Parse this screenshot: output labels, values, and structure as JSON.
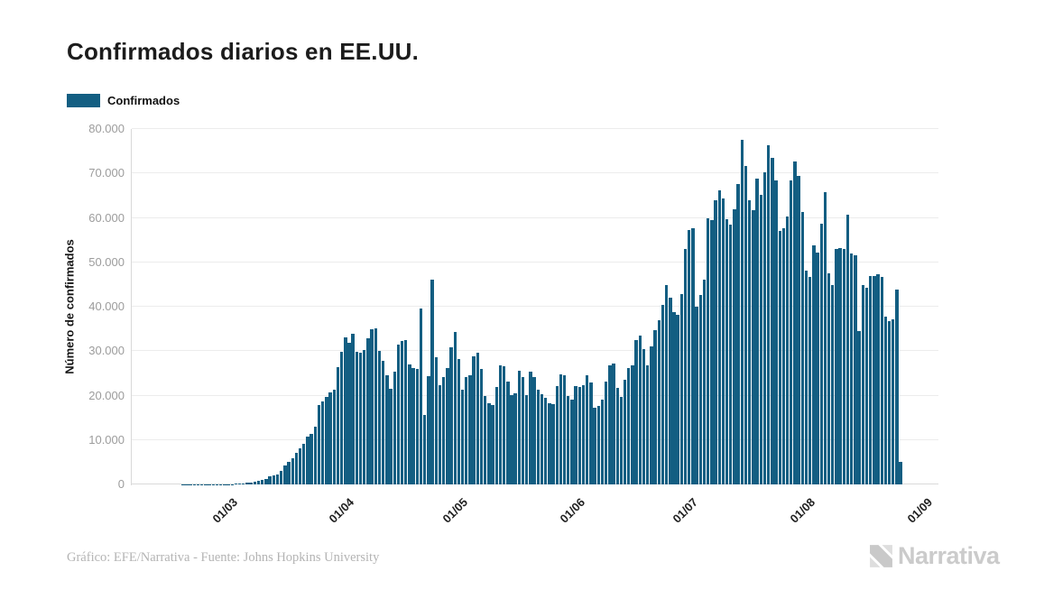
{
  "title": "Confirmados diarios en EE.UU.",
  "legend": {
    "label": "Confirmados",
    "swatch_color": "#135e82"
  },
  "y_axis": {
    "title": "Número de confirmados",
    "tick_labels": [
      "0",
      "10.000",
      "20.000",
      "30.000",
      "40.000",
      "50.000",
      "60.000",
      "70.000",
      "80.000"
    ],
    "tick_values": [
      0,
      10000,
      20000,
      30000,
      40000,
      50000,
      60000,
      70000,
      80000
    ]
  },
  "x_axis": {
    "tick_labels": [
      "01/03",
      "01/04",
      "01/05",
      "01/06",
      "01/07",
      "01/08",
      "01/09"
    ],
    "tick_day_indices": [
      17,
      48,
      78,
      109,
      139,
      170,
      201
    ]
  },
  "footer": {
    "credit": "Gráfico: EFE/Narrativa - Fuente: Johns Hopkins University"
  },
  "logo": {
    "text": "Narrativa"
  },
  "chart_data": {
    "type": "bar",
    "title": "Confirmados diarios en EE.UU.",
    "xlabel": "",
    "ylabel": "Número de confirmados",
    "ylim": [
      0,
      80000
    ],
    "grid": true,
    "legend_position": "top-left",
    "bar_color": "#135e82",
    "frequency": "daily",
    "start_date": "2020-02-13",
    "end_date": "2020-08-27",
    "x_tick_labels": [
      "01/03",
      "01/04",
      "01/05",
      "01/06",
      "01/07",
      "01/08",
      "01/09"
    ],
    "series": [
      {
        "name": "Confirmados",
        "values": [
          10,
          8,
          12,
          9,
          14,
          12,
          16,
          18,
          20,
          24,
          22,
          28,
          30,
          27,
          35,
          42,
          55,
          66,
          85,
          100,
          130,
          185,
          260,
          345,
          430,
          560,
          780,
          960,
          1250,
          1750,
          1950,
          2250,
          3100,
          4200,
          5100,
          5900,
          7200,
          8100,
          9200,
          10800,
          11300,
          13000,
          17800,
          18700,
          19700,
          20700,
          21300,
          26500,
          29900,
          33200,
          31900,
          33900,
          29900,
          29600,
          30200,
          32900,
          34900,
          35100,
          30100,
          27800,
          24600,
          21600,
          25300,
          31500,
          32200,
          32500,
          27100,
          26100,
          25900,
          39500,
          15700,
          24300,
          46000,
          28600,
          22300,
          24100,
          26200,
          30900,
          34300,
          28200,
          21400,
          24200,
          24500,
          28900,
          29600,
          25900,
          19900,
          18200,
          17900,
          21900,
          26900,
          26600,
          23200,
          20200,
          20500,
          25500,
          24200,
          20100,
          25400,
          24200,
          21400,
          20400,
          19400,
          18300,
          18100,
          22200,
          24800,
          24500,
          20000,
          19100,
          22200,
          22000,
          22400,
          24600,
          23000,
          17300,
          17700,
          19000,
          23100,
          26800,
          27200,
          21700,
          19700,
          23500,
          26200,
          26800,
          32500,
          33500,
          30500,
          26800,
          31000,
          34700,
          36900,
          40500,
          44800,
          42100,
          38700,
          38200,
          42800,
          52900,
          57300,
          57700,
          40000,
          42700,
          46000,
          60000,
          59500,
          63900,
          66100,
          64400,
          59700,
          58500,
          62000,
          67600,
          77500,
          71600,
          64000,
          61700,
          68800,
          65100,
          70300,
          76300,
          73600,
          68500,
          57000,
          57700,
          60400,
          68500,
          72600,
          69500,
          61400,
          48200,
          46800,
          53900,
          52200,
          58700,
          65800,
          47500,
          44800,
          52900,
          53300,
          52900,
          60700,
          51900,
          51600,
          34600,
          44900,
          44300,
          47000,
          46900,
          47400,
          46700,
          37700,
          36700,
          37100,
          43800,
          5100
        ]
      }
    ]
  }
}
